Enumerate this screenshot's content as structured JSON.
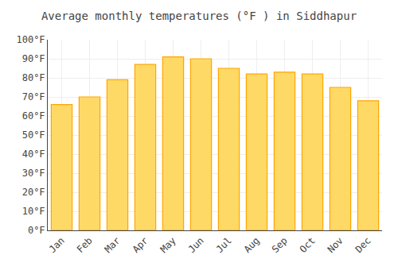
{
  "chart_data": {
    "type": "bar",
    "title": "Average monthly temperatures (°F ) in Siddhapur",
    "categories": [
      "Jan",
      "Feb",
      "Mar",
      "Apr",
      "May",
      "Jun",
      "Jul",
      "Aug",
      "Sep",
      "Oct",
      "Nov",
      "Dec"
    ],
    "values": [
      66,
      70,
      79,
      87,
      91,
      90,
      85,
      82,
      83,
      82,
      75,
      68
    ],
    "color": "#FFD966",
    "ylim": [
      0,
      100
    ],
    "yticks": [
      {
        "value": 0,
        "label": "0°F"
      },
      {
        "value": 10,
        "label": "10°F"
      },
      {
        "value": 20,
        "label": "20°F"
      },
      {
        "value": 30,
        "label": "30°F"
      },
      {
        "value": 40,
        "label": "40°F"
      },
      {
        "value": 50,
        "label": "50°F"
      },
      {
        "value": 60,
        "label": "60°F"
      },
      {
        "value": 70,
        "label": "70°F"
      },
      {
        "value": 80,
        "label": "80°F"
      },
      {
        "value": 90,
        "label": "90°F"
      },
      {
        "value": 100,
        "label": "100°F"
      }
    ],
    "grid": true
  }
}
